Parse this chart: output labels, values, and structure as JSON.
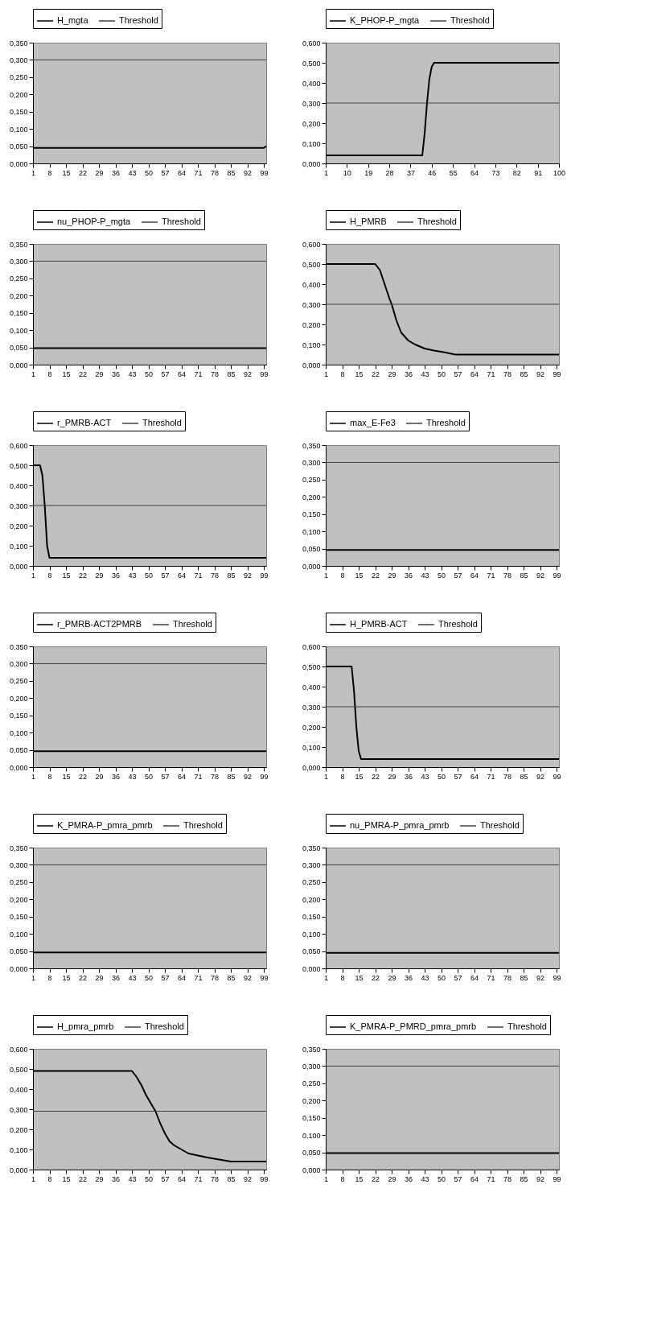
{
  "chart_data": [
    {
      "type": "line",
      "legend": "top",
      "xlim": [
        1,
        100
      ],
      "xticks": [
        1,
        8,
        15,
        22,
        29,
        36,
        43,
        50,
        57,
        64,
        71,
        78,
        85,
        92,
        99
      ],
      "ylim": [
        0,
        0.35
      ],
      "yticks": [
        {
          "value": 0,
          "label": "0,000"
        },
        {
          "value": 0.05,
          "label": "0,050"
        },
        {
          "value": 0.1,
          "label": "0,100"
        },
        {
          "value": 0.15,
          "label": "0,150"
        },
        {
          "value": 0.2,
          "label": "0,200"
        },
        {
          "value": 0.25,
          "label": "0,250"
        },
        {
          "value": 0.3,
          "label": "0,300"
        },
        {
          "value": 0.35,
          "label": "0,350"
        }
      ],
      "series": [
        {
          "name": "H_mgta",
          "color": "#000000",
          "x": [
            1,
            99,
            100
          ],
          "values": [
            0.045,
            0.045,
            0.05
          ]
        },
        {
          "name": "Threshold",
          "color": "#404040",
          "x": [
            1,
            100
          ],
          "values": [
            0.3,
            0.3
          ]
        }
      ]
    },
    {
      "type": "line",
      "legend": "top",
      "xlim": [
        1,
        100
      ],
      "xticks": [
        1,
        10,
        19,
        28,
        37,
        46,
        55,
        64,
        73,
        82,
        91,
        100
      ],
      "ylim": [
        0,
        0.6
      ],
      "yticks": [
        {
          "value": 0,
          "label": "0,000"
        },
        {
          "value": 0.1,
          "label": "0,100"
        },
        {
          "value": 0.2,
          "label": "0,200"
        },
        {
          "value": 0.3,
          "label": "0,300"
        },
        {
          "value": 0.4,
          "label": "0,400"
        },
        {
          "value": 0.5,
          "label": "0,500"
        },
        {
          "value": 0.6,
          "label": "0,600"
        }
      ],
      "series": [
        {
          "name": "K_PHOP-P_mgta",
          "color": "#000000",
          "x": [
            1,
            42,
            43,
            44,
            45,
            46,
            47,
            100
          ],
          "values": [
            0.04,
            0.04,
            0.15,
            0.3,
            0.42,
            0.48,
            0.5,
            0.5
          ]
        },
        {
          "name": "Threshold",
          "color": "#404040",
          "x": [
            1,
            100
          ],
          "values": [
            0.3,
            0.3
          ]
        }
      ]
    },
    {
      "type": "line",
      "legend": "top",
      "xlim": [
        1,
        100
      ],
      "xticks": [
        1,
        8,
        15,
        22,
        29,
        36,
        43,
        50,
        57,
        64,
        71,
        78,
        85,
        92,
        99
      ],
      "ylim": [
        0,
        0.35
      ],
      "yticks": [
        {
          "value": 0,
          "label": "0,000"
        },
        {
          "value": 0.05,
          "label": "0,050"
        },
        {
          "value": 0.1,
          "label": "0,100"
        },
        {
          "value": 0.15,
          "label": "0,150"
        },
        {
          "value": 0.2,
          "label": "0,200"
        },
        {
          "value": 0.25,
          "label": "0,250"
        },
        {
          "value": 0.3,
          "label": "0,300"
        },
        {
          "value": 0.35,
          "label": "0,350"
        }
      ],
      "series": [
        {
          "name": "nu_PHOP-P_mgta",
          "color": "#000000",
          "x": [
            1,
            100
          ],
          "values": [
            0.048,
            0.048
          ]
        },
        {
          "name": "Threshold",
          "color": "#404040",
          "x": [
            1,
            100
          ],
          "values": [
            0.3,
            0.3
          ]
        }
      ]
    },
    {
      "type": "line",
      "legend": "top",
      "xlim": [
        1,
        100
      ],
      "xticks": [
        1,
        8,
        15,
        22,
        29,
        36,
        43,
        50,
        57,
        64,
        71,
        78,
        85,
        92,
        99
      ],
      "ylim": [
        0,
        0.6
      ],
      "yticks": [
        {
          "value": 0,
          "label": "0,000"
        },
        {
          "value": 0.1,
          "label": "0,100"
        },
        {
          "value": 0.2,
          "label": "0,200"
        },
        {
          "value": 0.3,
          "label": "0,300"
        },
        {
          "value": 0.4,
          "label": "0,400"
        },
        {
          "value": 0.5,
          "label": "0,500"
        },
        {
          "value": 0.6,
          "label": "0,600"
        }
      ],
      "series": [
        {
          "name": "H_PMRB",
          "color": "#000000",
          "x": [
            1,
            22,
            24,
            26,
            28,
            29,
            31,
            33,
            36,
            39,
            43,
            47,
            52,
            56,
            100
          ],
          "values": [
            0.5,
            0.5,
            0.47,
            0.4,
            0.33,
            0.3,
            0.22,
            0.16,
            0.12,
            0.1,
            0.08,
            0.07,
            0.06,
            0.05,
            0.05
          ]
        },
        {
          "name": "Threshold",
          "color": "#404040",
          "x": [
            1,
            100
          ],
          "values": [
            0.3,
            0.3
          ]
        }
      ]
    },
    {
      "type": "line",
      "legend": "top",
      "xlim": [
        1,
        100
      ],
      "xticks": [
        1,
        8,
        15,
        22,
        29,
        36,
        43,
        50,
        57,
        64,
        71,
        78,
        85,
        92,
        99
      ],
      "ylim": [
        0,
        0.6
      ],
      "yticks": [
        {
          "value": 0,
          "label": "0,000"
        },
        {
          "value": 0.1,
          "label": "0,100"
        },
        {
          "value": 0.2,
          "label": "0,200"
        },
        {
          "value": 0.3,
          "label": "0,300"
        },
        {
          "value": 0.4,
          "label": "0,400"
        },
        {
          "value": 0.5,
          "label": "0,500"
        },
        {
          "value": 0.6,
          "label": "0,600"
        }
      ],
      "series": [
        {
          "name": "r_PMRB-ACT",
          "color": "#000000",
          "x": [
            1,
            4,
            5,
            6,
            7,
            8,
            100
          ],
          "values": [
            0.5,
            0.5,
            0.45,
            0.3,
            0.1,
            0.04,
            0.04
          ]
        },
        {
          "name": "Threshold",
          "color": "#404040",
          "x": [
            1,
            100
          ],
          "values": [
            0.3,
            0.3
          ]
        }
      ]
    },
    {
      "type": "line",
      "legend": "top",
      "xlim": [
        1,
        100
      ],
      "xticks": [
        1,
        8,
        15,
        22,
        29,
        36,
        43,
        50,
        57,
        64,
        71,
        78,
        85,
        92,
        99
      ],
      "ylim": [
        0,
        0.35
      ],
      "yticks": [
        {
          "value": 0,
          "label": "0,000"
        },
        {
          "value": 0.05,
          "label": "0,050"
        },
        {
          "value": 0.1,
          "label": "0,100"
        },
        {
          "value": 0.15,
          "label": "0,150"
        },
        {
          "value": 0.2,
          "label": "0,200"
        },
        {
          "value": 0.25,
          "label": "0,250"
        },
        {
          "value": 0.3,
          "label": "0,300"
        },
        {
          "value": 0.35,
          "label": "0,350"
        }
      ],
      "series": [
        {
          "name": "max_E-Fe3",
          "color": "#000000",
          "x": [
            1,
            100
          ],
          "values": [
            0.046,
            0.046
          ]
        },
        {
          "name": "Threshold",
          "color": "#404040",
          "x": [
            1,
            100
          ],
          "values": [
            0.3,
            0.3
          ]
        }
      ]
    },
    {
      "type": "line",
      "legend": "top",
      "xlim": [
        1,
        100
      ],
      "xticks": [
        1,
        8,
        15,
        22,
        29,
        36,
        43,
        50,
        57,
        64,
        71,
        78,
        85,
        92,
        99
      ],
      "ylim": [
        0,
        0.35
      ],
      "yticks": [
        {
          "value": 0,
          "label": "0,000"
        },
        {
          "value": 0.05,
          "label": "0,050"
        },
        {
          "value": 0.1,
          "label": "0,100"
        },
        {
          "value": 0.15,
          "label": "0,150"
        },
        {
          "value": 0.2,
          "label": "0,200"
        },
        {
          "value": 0.25,
          "label": "0,250"
        },
        {
          "value": 0.3,
          "label": "0,300"
        },
        {
          "value": 0.35,
          "label": "0,350"
        }
      ],
      "series": [
        {
          "name": "r_PMRB-ACT2PMRB",
          "color": "#000000",
          "x": [
            1,
            100
          ],
          "values": [
            0.046,
            0.046
          ]
        },
        {
          "name": "Threshold",
          "color": "#404040",
          "x": [
            1,
            100
          ],
          "values": [
            0.3,
            0.3
          ]
        }
      ]
    },
    {
      "type": "line",
      "legend": "top",
      "xlim": [
        1,
        100
      ],
      "xticks": [
        1,
        8,
        15,
        22,
        29,
        36,
        43,
        50,
        57,
        64,
        71,
        78,
        85,
        92,
        99
      ],
      "ylim": [
        0,
        0.6
      ],
      "yticks": [
        {
          "value": 0,
          "label": "0,000"
        },
        {
          "value": 0.1,
          "label": "0,100"
        },
        {
          "value": 0.2,
          "label": "0,200"
        },
        {
          "value": 0.3,
          "label": "0,300"
        },
        {
          "value": 0.4,
          "label": "0,400"
        },
        {
          "value": 0.5,
          "label": "0,500"
        },
        {
          "value": 0.6,
          "label": "0,600"
        }
      ],
      "series": [
        {
          "name": "H_PMRB-ACT",
          "color": "#000000",
          "x": [
            1,
            12,
            13,
            14,
            15,
            16,
            100
          ],
          "values": [
            0.5,
            0.5,
            0.38,
            0.2,
            0.08,
            0.04,
            0.04
          ]
        },
        {
          "name": "Threshold",
          "color": "#404040",
          "x": [
            1,
            100
          ],
          "values": [
            0.3,
            0.3
          ]
        }
      ]
    },
    {
      "type": "line",
      "legend": "top",
      "xlim": [
        1,
        100
      ],
      "xticks": [
        1,
        8,
        15,
        22,
        29,
        36,
        43,
        50,
        57,
        64,
        71,
        78,
        85,
        92,
        99
      ],
      "ylim": [
        0,
        0.35
      ],
      "yticks": [
        {
          "value": 0,
          "label": "0,000"
        },
        {
          "value": 0.05,
          "label": "0,050"
        },
        {
          "value": 0.1,
          "label": "0,100"
        },
        {
          "value": 0.15,
          "label": "0,150"
        },
        {
          "value": 0.2,
          "label": "0,200"
        },
        {
          "value": 0.25,
          "label": "0,250"
        },
        {
          "value": 0.3,
          "label": "0,300"
        },
        {
          "value": 0.35,
          "label": "0,350"
        }
      ],
      "series": [
        {
          "name": "K_PMRA-P_pmra_pmrb",
          "color": "#000000",
          "x": [
            1,
            100
          ],
          "values": [
            0.046,
            0.046
          ]
        },
        {
          "name": "Threshold",
          "color": "#404040",
          "x": [
            1,
            100
          ],
          "values": [
            0.3,
            0.3
          ]
        }
      ]
    },
    {
      "type": "line",
      "legend": "top",
      "xlim": [
        1,
        100
      ],
      "xticks": [
        1,
        8,
        15,
        22,
        29,
        36,
        43,
        50,
        57,
        64,
        71,
        78,
        85,
        92,
        99
      ],
      "ylim": [
        0,
        0.35
      ],
      "yticks": [
        {
          "value": 0,
          "label": "0,000"
        },
        {
          "value": 0.05,
          "label": "0,050"
        },
        {
          "value": 0.1,
          "label": "0,100"
        },
        {
          "value": 0.15,
          "label": "0,150"
        },
        {
          "value": 0.2,
          "label": "0,200"
        },
        {
          "value": 0.25,
          "label": "0,250"
        },
        {
          "value": 0.3,
          "label": "0,300"
        },
        {
          "value": 0.35,
          "label": "0,350"
        }
      ],
      "series": [
        {
          "name": "nu_PMRA-P_pmra_pmrb",
          "color": "#000000",
          "x": [
            1,
            100
          ],
          "values": [
            0.045,
            0.045
          ]
        },
        {
          "name": "Threshold",
          "color": "#404040",
          "x": [
            1,
            100
          ],
          "values": [
            0.3,
            0.3
          ]
        }
      ]
    },
    {
      "type": "line",
      "legend": "top",
      "xlim": [
        1,
        100
      ],
      "xticks": [
        1,
        8,
        15,
        22,
        29,
        36,
        43,
        50,
        57,
        64,
        71,
        78,
        85,
        92,
        99
      ],
      "ylim": [
        0,
        0.6
      ],
      "yticks": [
        {
          "value": 0,
          "label": "0,000"
        },
        {
          "value": 0.1,
          "label": "0,100"
        },
        {
          "value": 0.2,
          "label": "0,200"
        },
        {
          "value": 0.3,
          "label": "0,300"
        },
        {
          "value": 0.4,
          "label": "0,400"
        },
        {
          "value": 0.5,
          "label": "0,500"
        },
        {
          "value": 0.6,
          "label": "0,600"
        }
      ],
      "series": [
        {
          "name": "H_pmra_pmrb",
          "color": "#000000",
          "x": [
            1,
            43,
            45,
            47,
            49,
            51,
            53,
            55,
            57,
            59,
            61,
            64,
            67,
            71,
            75,
            80,
            85,
            100
          ],
          "values": [
            0.49,
            0.49,
            0.46,
            0.42,
            0.37,
            0.33,
            0.29,
            0.23,
            0.18,
            0.14,
            0.12,
            0.1,
            0.08,
            0.07,
            0.06,
            0.05,
            0.04,
            0.04
          ]
        },
        {
          "name": "Threshold",
          "color": "#404040",
          "x": [
            1,
            100
          ],
          "values": [
            0.29,
            0.29
          ]
        }
      ]
    },
    {
      "type": "line",
      "legend": "top",
      "xlim": [
        1,
        100
      ],
      "xticks": [
        1,
        8,
        15,
        22,
        29,
        36,
        43,
        50,
        57,
        64,
        71,
        78,
        85,
        92,
        99
      ],
      "ylim": [
        0,
        0.35
      ],
      "yticks": [
        {
          "value": 0,
          "label": "0,000"
        },
        {
          "value": 0.05,
          "label": "0,050"
        },
        {
          "value": 0.1,
          "label": "0,100"
        },
        {
          "value": 0.15,
          "label": "0,150"
        },
        {
          "value": 0.2,
          "label": "0,200"
        },
        {
          "value": 0.25,
          "label": "0,250"
        },
        {
          "value": 0.3,
          "label": "0,300"
        },
        {
          "value": 0.35,
          "label": "0,350"
        }
      ],
      "series": [
        {
          "name": "K_PMRA-P_PMRD_pmra_pmrb",
          "color": "#000000",
          "x": [
            1,
            100
          ],
          "values": [
            0.048,
            0.048
          ]
        },
        {
          "name": "Threshold",
          "color": "#404040",
          "x": [
            1,
            100
          ],
          "values": [
            0.3,
            0.3
          ]
        }
      ]
    }
  ]
}
